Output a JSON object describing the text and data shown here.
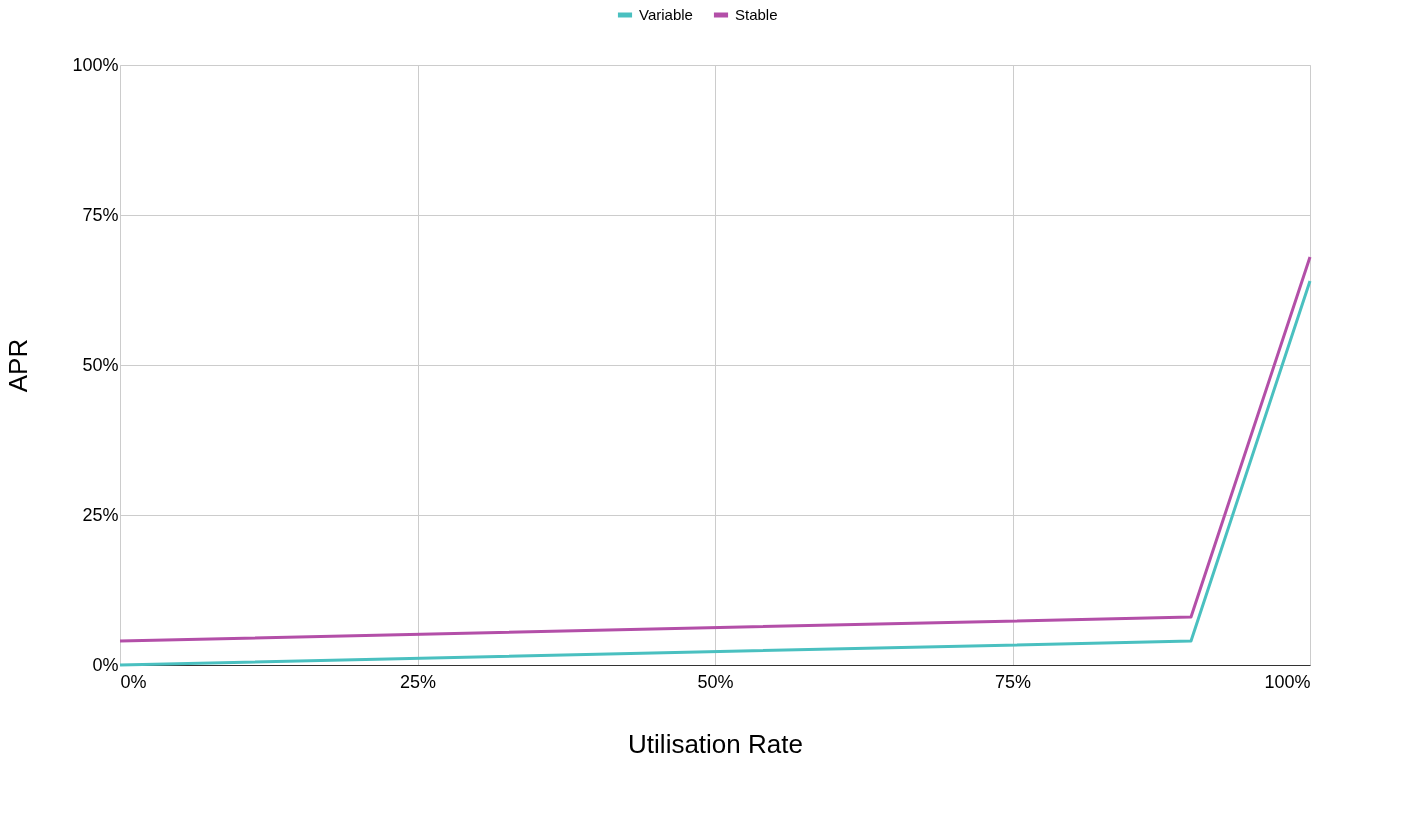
{
  "chart_data": {
    "type": "line",
    "xlabel": "Utilisation Rate",
    "ylabel": "APR",
    "x": [
      0,
      90,
      100
    ],
    "series": [
      {
        "name": "Variable",
        "color": "#4ac0c0",
        "values": [
          0,
          4,
          64
        ]
      },
      {
        "name": "Stable",
        "color": "#b34fa8",
        "values": [
          4,
          8,
          68
        ]
      }
    ],
    "xlim": [
      0,
      100
    ],
    "ylim": [
      0,
      100
    ],
    "xticks": [
      {
        "value": 0,
        "label": "0%"
      },
      {
        "value": 25,
        "label": "25%"
      },
      {
        "value": 50,
        "label": "50%"
      },
      {
        "value": 75,
        "label": "75%"
      },
      {
        "value": 100,
        "label": "100%"
      }
    ],
    "yticks": [
      {
        "value": 0,
        "label": "0%"
      },
      {
        "value": 25,
        "label": "25%"
      },
      {
        "value": 50,
        "label": "50%"
      },
      {
        "value": 75,
        "label": "75%"
      },
      {
        "value": 100,
        "label": "100%"
      }
    ],
    "grid": true,
    "legend": "top",
    "marker": "none",
    "line_style": "solid"
  }
}
